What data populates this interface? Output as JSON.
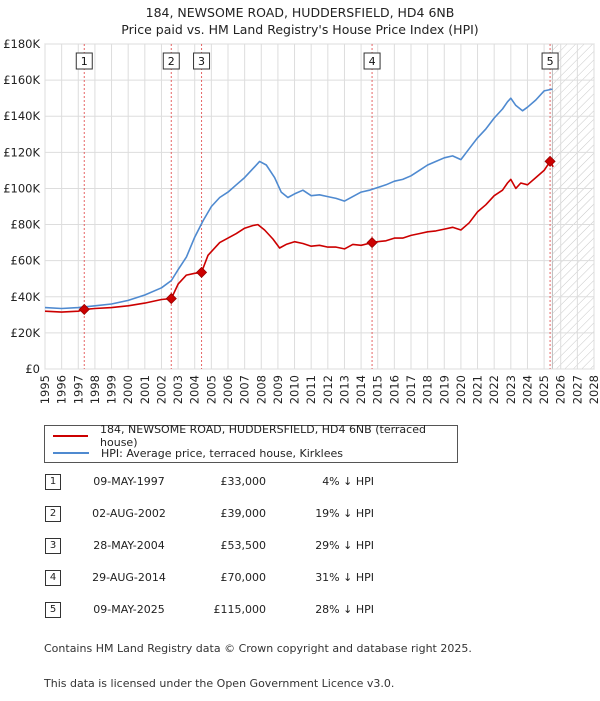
{
  "chart_data": {
    "type": "line",
    "title": "184, NEWSOME ROAD, HUDDERSFIELD, HD4 6NB",
    "subtitle": "Price paid vs. HM Land Registry's House Price Index (HPI)",
    "xlim": [
      1995,
      2028
    ],
    "ylim": [
      0,
      180000
    ],
    "x_ticks": [
      "1995",
      "1996",
      "1997",
      "1998",
      "1999",
      "2000",
      "2001",
      "2002",
      "2003",
      "2004",
      "2005",
      "2006",
      "2007",
      "2008",
      "2009",
      "2010",
      "2011",
      "2012",
      "2013",
      "2014",
      "2015",
      "2016",
      "2017",
      "2018",
      "2019",
      "2020",
      "2021",
      "2022",
      "2023",
      "2024",
      "2025",
      "2026",
      "2027",
      "2028"
    ],
    "y_ticks": [
      {
        "value": 0,
        "label": "£0"
      },
      {
        "value": 20000,
        "label": "£20K"
      },
      {
        "value": 40000,
        "label": "£40K"
      },
      {
        "value": 60000,
        "label": "£60K"
      },
      {
        "value": 80000,
        "label": "£80K"
      },
      {
        "value": 100000,
        "label": "£100K"
      },
      {
        "value": 120000,
        "label": "£120K"
      },
      {
        "value": 140000,
        "label": "£140K"
      },
      {
        "value": 160000,
        "label": "£160K"
      },
      {
        "value": 180000,
        "label": "£180K"
      }
    ],
    "forecast_start": 2025.5,
    "series": [
      {
        "name": "184, NEWSOME ROAD, HUDDERSFIELD, HD4 6NB (terraced house)",
        "color": "#cc0000",
        "x": [
          1995.0,
          1996.0,
          1997.0,
          1997.36,
          1998.0,
          1999.0,
          2000.0,
          2001.0,
          2002.0,
          2002.59,
          2003.0,
          2003.5,
          2004.0,
          2004.41,
          2004.8,
          2005.5,
          2006.0,
          2006.5,
          2007.0,
          2007.5,
          2007.8,
          2008.2,
          2008.7,
          2009.1,
          2009.5,
          2010.0,
          2010.5,
          2011.0,
          2011.5,
          2012.0,
          2012.5,
          2013.0,
          2013.5,
          2014.0,
          2014.66,
          2015.0,
          2015.5,
          2016.0,
          2016.5,
          2017.0,
          2017.5,
          2018.0,
          2018.5,
          2019.0,
          2019.5,
          2020.0,
          2020.5,
          2021.0,
          2021.5,
          2022.0,
          2022.5,
          2022.8,
          2023.0,
          2023.3,
          2023.6,
          2024.0,
          2024.5,
          2025.0,
          2025.36,
          2025.55
        ],
        "values": [
          32000,
          31500,
          32000,
          33000,
          33500,
          34000,
          35000,
          36500,
          38500,
          39000,
          47000,
          52000,
          53000,
          53500,
          63000,
          70000,
          72500,
          75000,
          78000,
          79500,
          80000,
          77000,
          72000,
          67000,
          69000,
          70500,
          69500,
          68000,
          68500,
          67500,
          67500,
          66500,
          69000,
          68500,
          70000,
          70500,
          71000,
          72500,
          72500,
          74000,
          75000,
          76000,
          76500,
          77500,
          78500,
          77000,
          81000,
          87000,
          91000,
          96000,
          99000,
          103000,
          105000,
          100000,
          103000,
          102000,
          106000,
          110000,
          115000,
          112000
        ]
      },
      {
        "name": "HPI: Average price, terraced house, Kirklees",
        "color": "#4f8ad0",
        "x": [
          1995.0,
          1996.0,
          1997.0,
          1998.0,
          1999.0,
          2000.0,
          2001.0,
          2002.0,
          2002.6,
          2003.0,
          2003.5,
          2004.0,
          2004.5,
          2005.0,
          2005.5,
          2006.0,
          2006.5,
          2007.0,
          2007.5,
          2007.9,
          2008.3,
          2008.8,
          2009.2,
          2009.6,
          2010.0,
          2010.5,
          2011.0,
          2011.5,
          2012.0,
          2012.5,
          2013.0,
          2013.5,
          2014.0,
          2014.5,
          2015.0,
          2015.5,
          2016.0,
          2016.5,
          2017.0,
          2017.5,
          2018.0,
          2018.5,
          2019.0,
          2019.5,
          2020.0,
          2020.5,
          2021.0,
          2021.5,
          2022.0,
          2022.5,
          2022.8,
          2023.0,
          2023.3,
          2023.7,
          2024.0,
          2024.5,
          2025.0,
          2025.5
        ],
        "values": [
          34000,
          33500,
          34000,
          35000,
          36000,
          38000,
          41000,
          45000,
          49000,
          55000,
          62000,
          73000,
          82000,
          90000,
          95000,
          98000,
          102000,
          106000,
          111000,
          115000,
          113000,
          106000,
          98000,
          95000,
          97000,
          99000,
          96000,
          96500,
          95500,
          94500,
          93000,
          95500,
          98000,
          99000,
          100500,
          102000,
          104000,
          105000,
          107000,
          110000,
          113000,
          115000,
          117000,
          118000,
          116000,
          122000,
          128000,
          133000,
          139000,
          144000,
          148000,
          150000,
          146000,
          143000,
          145000,
          149000,
          154000,
          155000
        ]
      }
    ],
    "sales": [
      {
        "label": "1",
        "x": 1997.36,
        "price": 33000
      },
      {
        "label": "2",
        "x": 2002.59,
        "price": 39000
      },
      {
        "label": "3",
        "x": 2004.41,
        "price": 53500
      },
      {
        "label": "4",
        "x": 2014.66,
        "price": 70000
      },
      {
        "label": "5",
        "x": 2025.36,
        "price": 115000
      }
    ]
  },
  "legend": {
    "items": [
      {
        "label": "184, NEWSOME ROAD, HUDDERSFIELD, HD4 6NB (terraced house)",
        "color": "#cc0000"
      },
      {
        "label": "HPI: Average price, terraced house, Kirklees",
        "color": "#4f8ad0"
      }
    ]
  },
  "transactions": [
    {
      "num": "1",
      "date": "09-MAY-1997",
      "price": "£33,000",
      "hpi": "4% ↓ HPI"
    },
    {
      "num": "2",
      "date": "02-AUG-2002",
      "price": "£39,000",
      "hpi": "19% ↓ HPI"
    },
    {
      "num": "3",
      "date": "28-MAY-2004",
      "price": "£53,500",
      "hpi": "29% ↓ HPI"
    },
    {
      "num": "4",
      "date": "29-AUG-2014",
      "price": "£70,000",
      "hpi": "31% ↓ HPI"
    },
    {
      "num": "5",
      "date": "09-MAY-2025",
      "price": "£115,000",
      "hpi": "28% ↓ HPI"
    }
  ],
  "footer": {
    "line1": "Contains HM Land Registry data © Crown copyright and database right 2025.",
    "line2": "This data is licensed under the Open Government Licence v3.0."
  }
}
